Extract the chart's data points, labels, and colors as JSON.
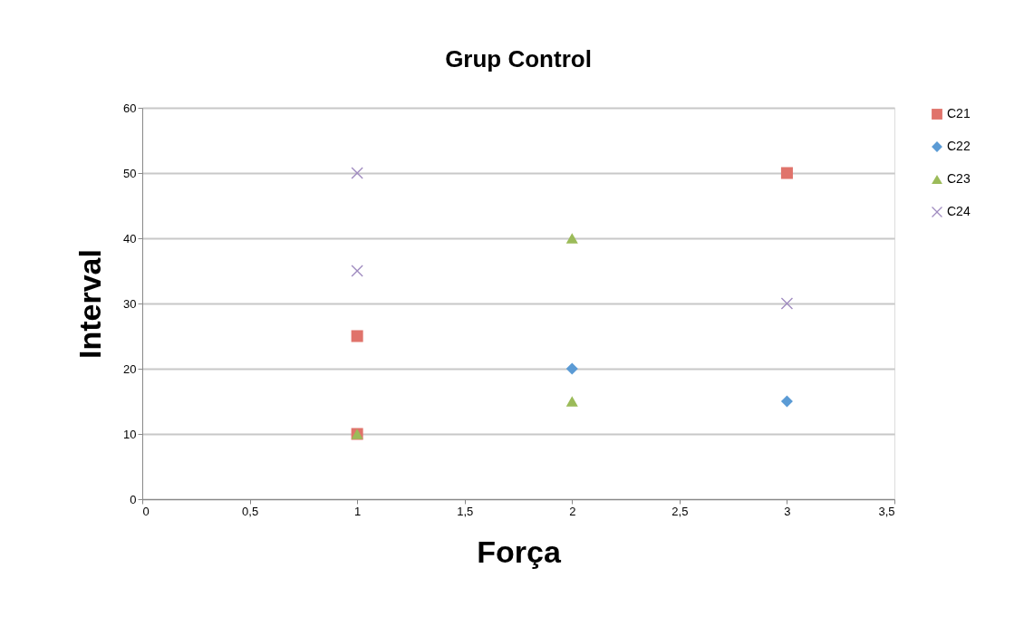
{
  "chart_data": {
    "type": "scatter",
    "title": "Grup Control",
    "xlabel": "Força",
    "ylabel": "Interval",
    "xlim": [
      0,
      3.5
    ],
    "xticks": [
      0,
      {
        "value": 0.5,
        "label": "0,5"
      },
      1,
      {
        "value": 1.5,
        "label": "1,5"
      },
      2,
      {
        "value": 2.5,
        "label": "2,5"
      },
      3,
      {
        "value": 3.5,
        "label": "3,5"
      }
    ],
    "ylim": [
      0,
      60
    ],
    "yticks": [
      0,
      10,
      20,
      30,
      40,
      50,
      60
    ],
    "grid": "y",
    "legend": "right",
    "series": [
      {
        "name": "C21",
        "color": "#e0736b",
        "marker": "square",
        "x": [
          1,
          1,
          3
        ],
        "values": [
          25,
          10,
          50
        ]
      },
      {
        "name": "C22",
        "color": "#5b9bd5",
        "marker": "diamond",
        "x": [
          2,
          3
        ],
        "values": [
          20,
          15
        ]
      },
      {
        "name": "C23",
        "color": "#9bbb59",
        "marker": "triangle",
        "x": [
          1,
          2,
          2
        ],
        "values": [
          10,
          40,
          15
        ]
      },
      {
        "name": "C24",
        "color": "#a08cc0",
        "marker": "cross",
        "x": [
          1,
          1,
          3
        ],
        "values": [
          50,
          35,
          30
        ]
      }
    ]
  }
}
